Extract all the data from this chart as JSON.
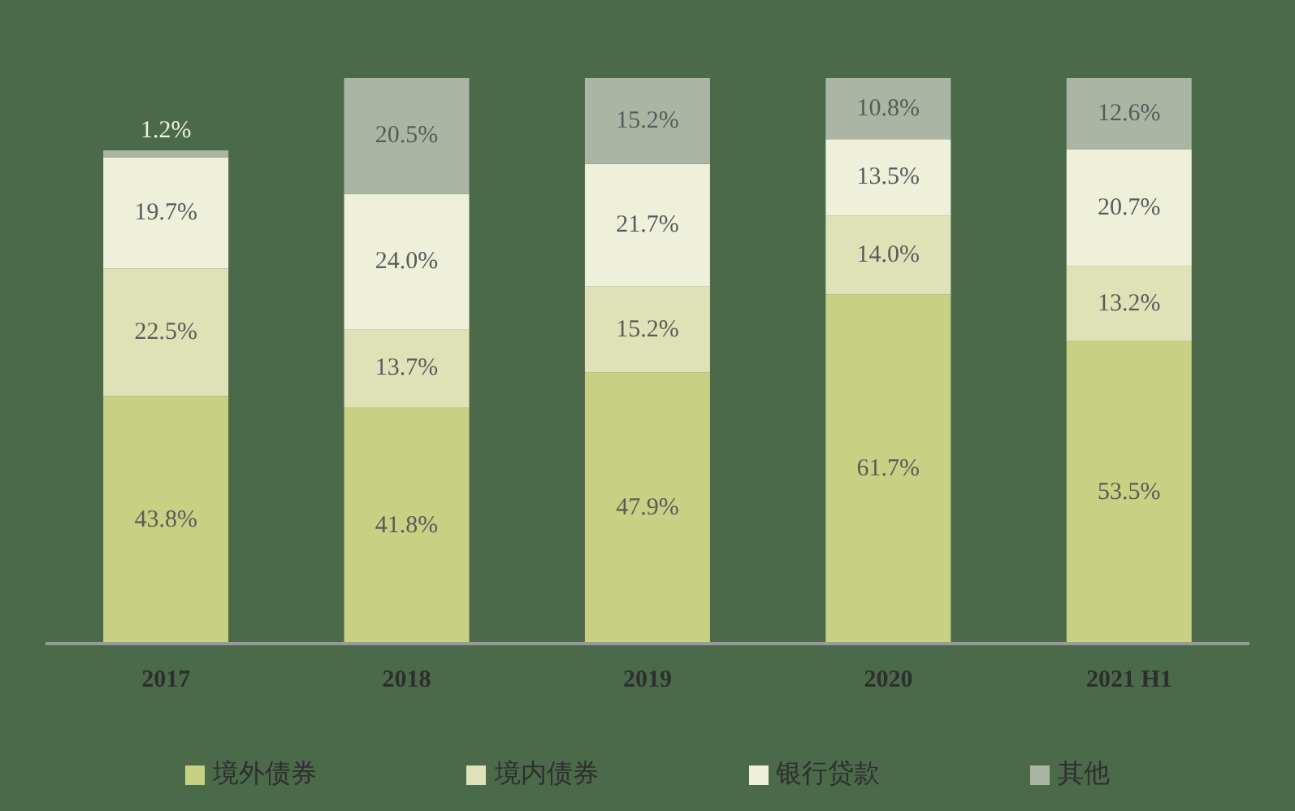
{
  "chart_data": {
    "type": "bar",
    "stacked": true,
    "categories": [
      "2017",
      "2018",
      "2019",
      "2020",
      "2021 H1"
    ],
    "ylim": [
      0,
      100
    ],
    "tick_labels": "x",
    "grid": false,
    "legend": "bottom",
    "series": [
      {
        "name": "境外债券",
        "color": "#c8d084",
        "values": [
          43.8,
          41.8,
          47.9,
          61.7,
          53.5
        ],
        "value_labels": [
          "43.8%",
          "41.8%",
          "47.9%",
          "61.7%",
          "53.5%"
        ]
      },
      {
        "name": "境内债券",
        "color": "#dfe2b6",
        "values": [
          22.5,
          13.7,
          15.2,
          14.0,
          13.2
        ],
        "value_labels": [
          "22.5%",
          "13.7%",
          "15.2%",
          "14.0%",
          "13.2%"
        ]
      },
      {
        "name": "银行贷款",
        "color": "#eef0d9",
        "values": [
          19.7,
          24.0,
          21.7,
          13.5,
          20.7
        ],
        "value_labels": [
          "19.7%",
          "24.0%",
          "21.7%",
          "13.5%",
          "20.7%"
        ]
      },
      {
        "name": "其他",
        "color": "#abb5a4",
        "values": [
          1.2,
          20.5,
          15.2,
          10.8,
          12.6
        ],
        "value_labels": [
          "1.2%",
          "20.5%",
          "15.2%",
          "10.8%",
          "12.6%"
        ]
      }
    ]
  }
}
